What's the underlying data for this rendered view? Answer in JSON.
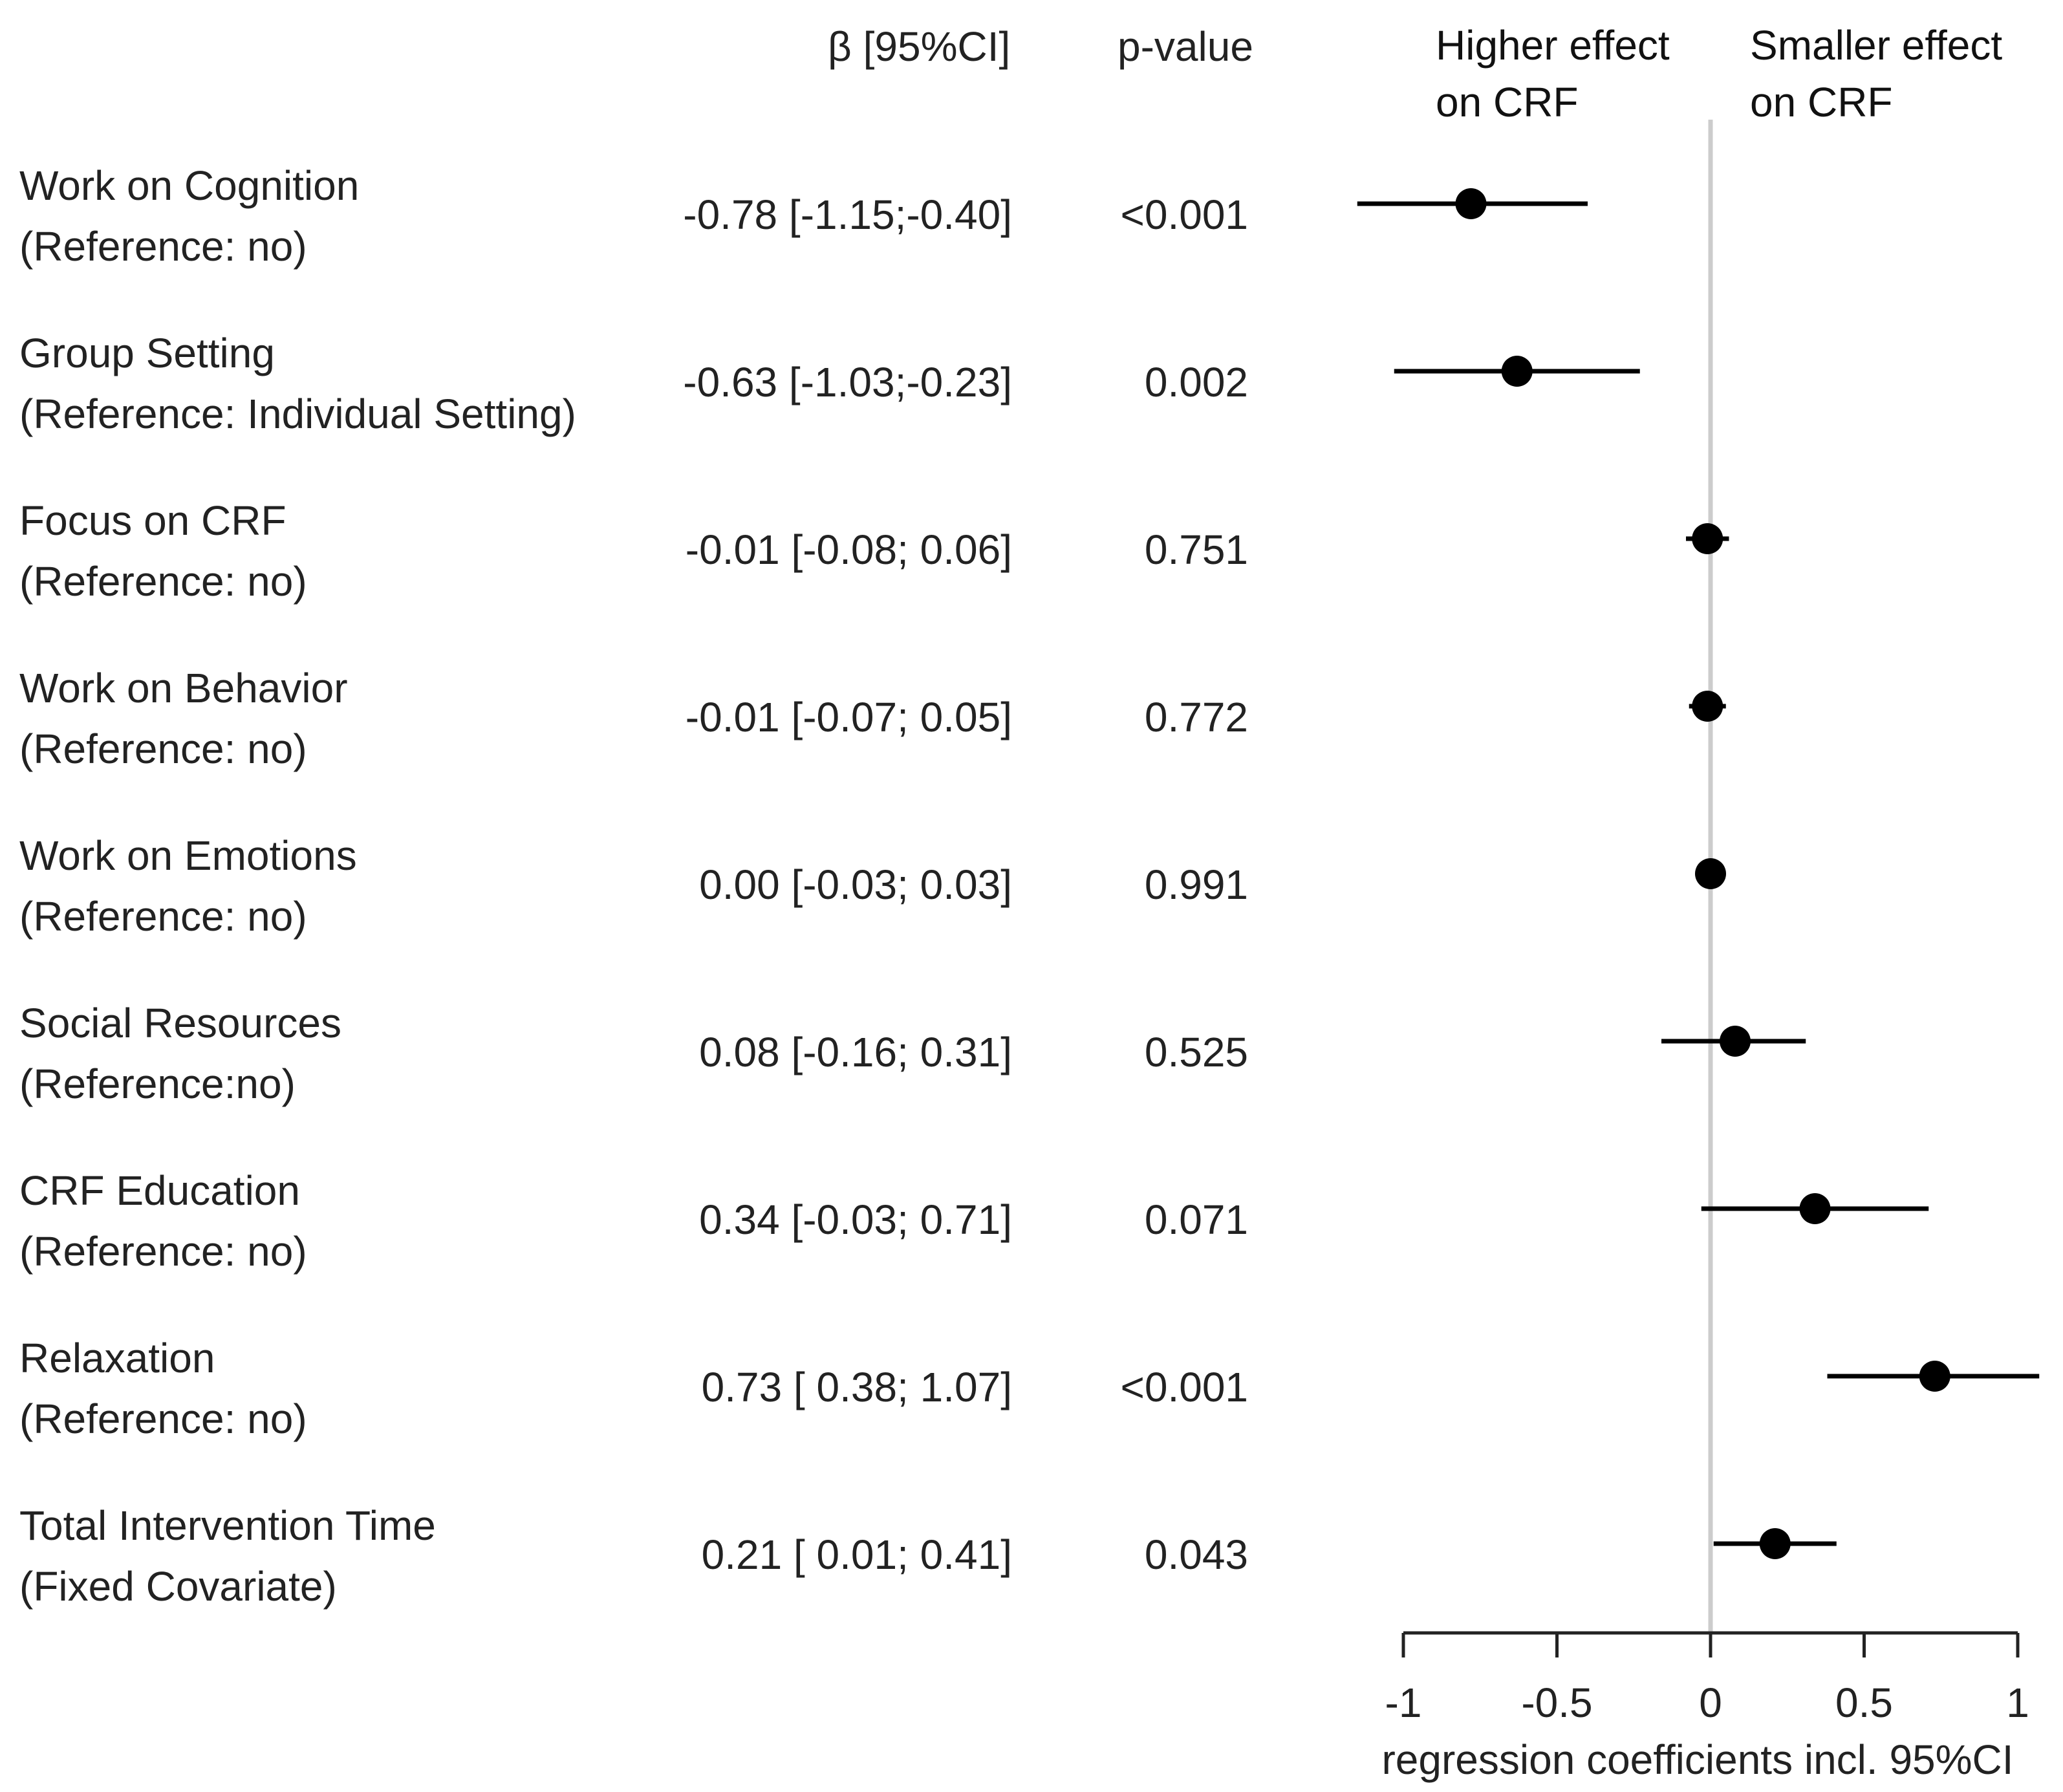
{
  "headers": {
    "beta": "β [95%CI]",
    "pvalue": "p-value"
  },
  "annotations": {
    "left_line1": "Higher effect",
    "left_line2": "on CRF",
    "right_line1": "Smaller effect",
    "right_line2": "on CRF"
  },
  "rows": [
    {
      "label1": "Work on Cognition",
      "label2": "(Reference: no)",
      "beta_text": "-0.78 [-1.15;-0.40]",
      "p_text": "<0.001"
    },
    {
      "label1": "Group Setting",
      "label2": "(Reference: Individual Setting)",
      "beta_text": "-0.63 [-1.03;-0.23]",
      "p_text": "0.002"
    },
    {
      "label1": "Focus on CRF",
      "label2": "(Reference: no)",
      "beta_text": "-0.01 [-0.08; 0.06]",
      "p_text": "0.751"
    },
    {
      "label1": "Work on Behavior",
      "label2": "(Reference: no)",
      "beta_text": "-0.01 [-0.07; 0.05]",
      "p_text": "0.772"
    },
    {
      "label1": "Work on Emotions",
      "label2": "(Reference: no)",
      "beta_text": "0.00 [-0.03; 0.03]",
      "p_text": "0.991"
    },
    {
      "label1": "Social Resources",
      "label2": "(Reference:no)",
      "beta_text": "0.08 [-0.16; 0.31]",
      "p_text": "0.525"
    },
    {
      "label1": "CRF Education",
      "label2": "(Reference: no)",
      "beta_text": "0.34 [-0.03; 0.71]",
      "p_text": "0.071"
    },
    {
      "label1": "Relaxation",
      "label2": "(Reference: no)",
      "beta_text": "0.73 [ 0.38; 1.07]",
      "p_text": "<0.001"
    },
    {
      "label1": "Total Intervention Time",
      "label2": "(Fixed Covariate)",
      "beta_text": "0.21 [ 0.01; 0.41]",
      "p_text": "0.043"
    }
  ],
  "chart_data": {
    "type": "forest",
    "xlabel": "regression coefficients incl. 95%CI",
    "xlim": [
      -1,
      1
    ],
    "ticks": [
      -1,
      -0.5,
      0,
      0.5,
      1
    ],
    "tick_labels": [
      "-1",
      "-0.5",
      "0",
      "0.5",
      "1"
    ],
    "reference_line": 0,
    "categories": [
      "Work on Cognition",
      "Group Setting",
      "Focus on CRF",
      "Work on Behavior",
      "Work on Emotions",
      "Social Resources",
      "CRF Education",
      "Relaxation",
      "Total Intervention Time"
    ],
    "estimates": [
      -0.78,
      -0.63,
      -0.01,
      -0.01,
      0.0,
      0.08,
      0.34,
      0.73,
      0.21
    ],
    "ci_lower": [
      -1.15,
      -1.03,
      -0.08,
      -0.07,
      -0.03,
      -0.16,
      -0.03,
      0.38,
      0.01
    ],
    "ci_upper": [
      -0.4,
      -0.23,
      0.06,
      0.05,
      0.03,
      0.31,
      0.71,
      1.07,
      0.41
    ],
    "p_values": [
      "<0.001",
      "0.002",
      "0.751",
      "0.772",
      "0.991",
      "0.525",
      "0.071",
      "<0.001",
      "0.043"
    ]
  },
  "colors": {
    "text": "#222222",
    "marker": "#000000",
    "reference_line": "#cccccc",
    "axis": "#222222"
  }
}
